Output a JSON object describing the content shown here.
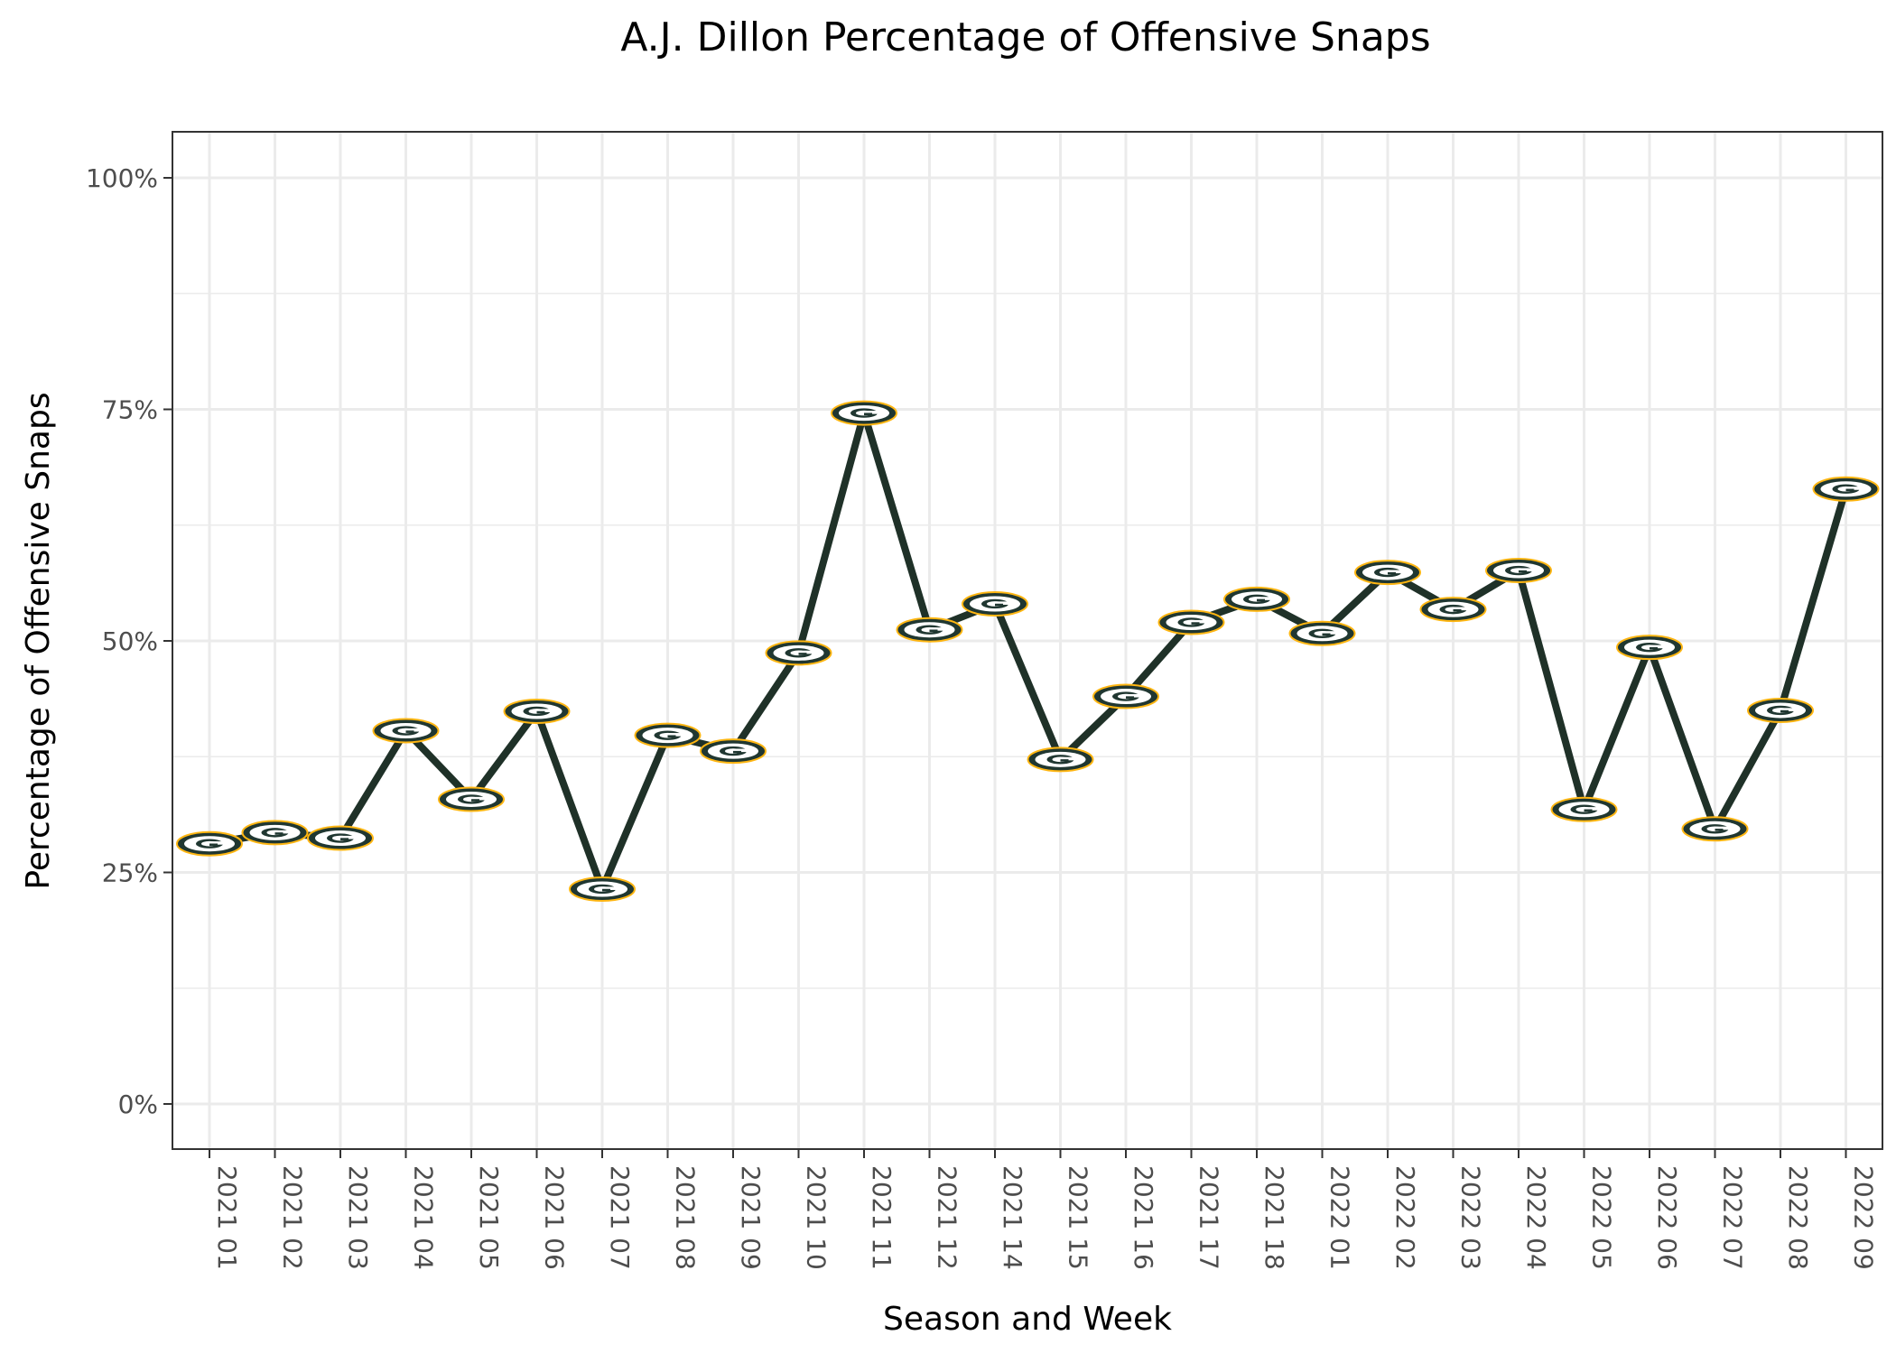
{
  "chart_data": {
    "type": "line",
    "title": "A.J. Dillon Percentage of Offensive Snaps",
    "xlabel": "Season and Week",
    "ylabel": "Percentage of Offensive Snaps",
    "ylim": [
      -0.047,
      1.05
    ],
    "yticks": [
      {
        "value": 0,
        "label": "0%"
      },
      {
        "value": 0.25,
        "label": "25%"
      },
      {
        "value": 0.5,
        "label": "50%"
      },
      {
        "value": 0.75,
        "label": "75%"
      },
      {
        "value": 1.0,
        "label": "100%"
      }
    ],
    "y_minor_gridlines": [
      0.125,
      0.375,
      0.625,
      0.875
    ],
    "grid": true,
    "categories": [
      "2021 01",
      "2021 02",
      "2021 03",
      "2021 04",
      "2021 05",
      "2021 06",
      "2021 07",
      "2021 08",
      "2021 09",
      "2021 10",
      "2021 11",
      "2021 12",
      "2021 14",
      "2021 15",
      "2021 16",
      "2021 17",
      "2021 18",
      "2022 01",
      "2022 02",
      "2022 03",
      "2022 04",
      "2022 05",
      "2022 06",
      "2022 07",
      "2022 08",
      "2022 09"
    ],
    "series": [
      {
        "values": [
          0.281,
          0.293,
          0.287,
          0.403,
          0.329,
          0.424,
          0.232,
          0.398,
          0.381,
          0.487,
          0.746,
          0.512,
          0.54,
          0.372,
          0.44,
          0.52,
          0.545,
          0.508,
          0.574,
          0.534,
          0.576,
          0.318,
          0.493,
          0.297,
          0.425,
          0.664
        ],
        "color": "#1f3128",
        "marker": "packers-g-logo"
      }
    ],
    "marker_colors": {
      "fill": "#203731",
      "ring": "#ffb612",
      "letter_bg": "#ffffff"
    }
  }
}
